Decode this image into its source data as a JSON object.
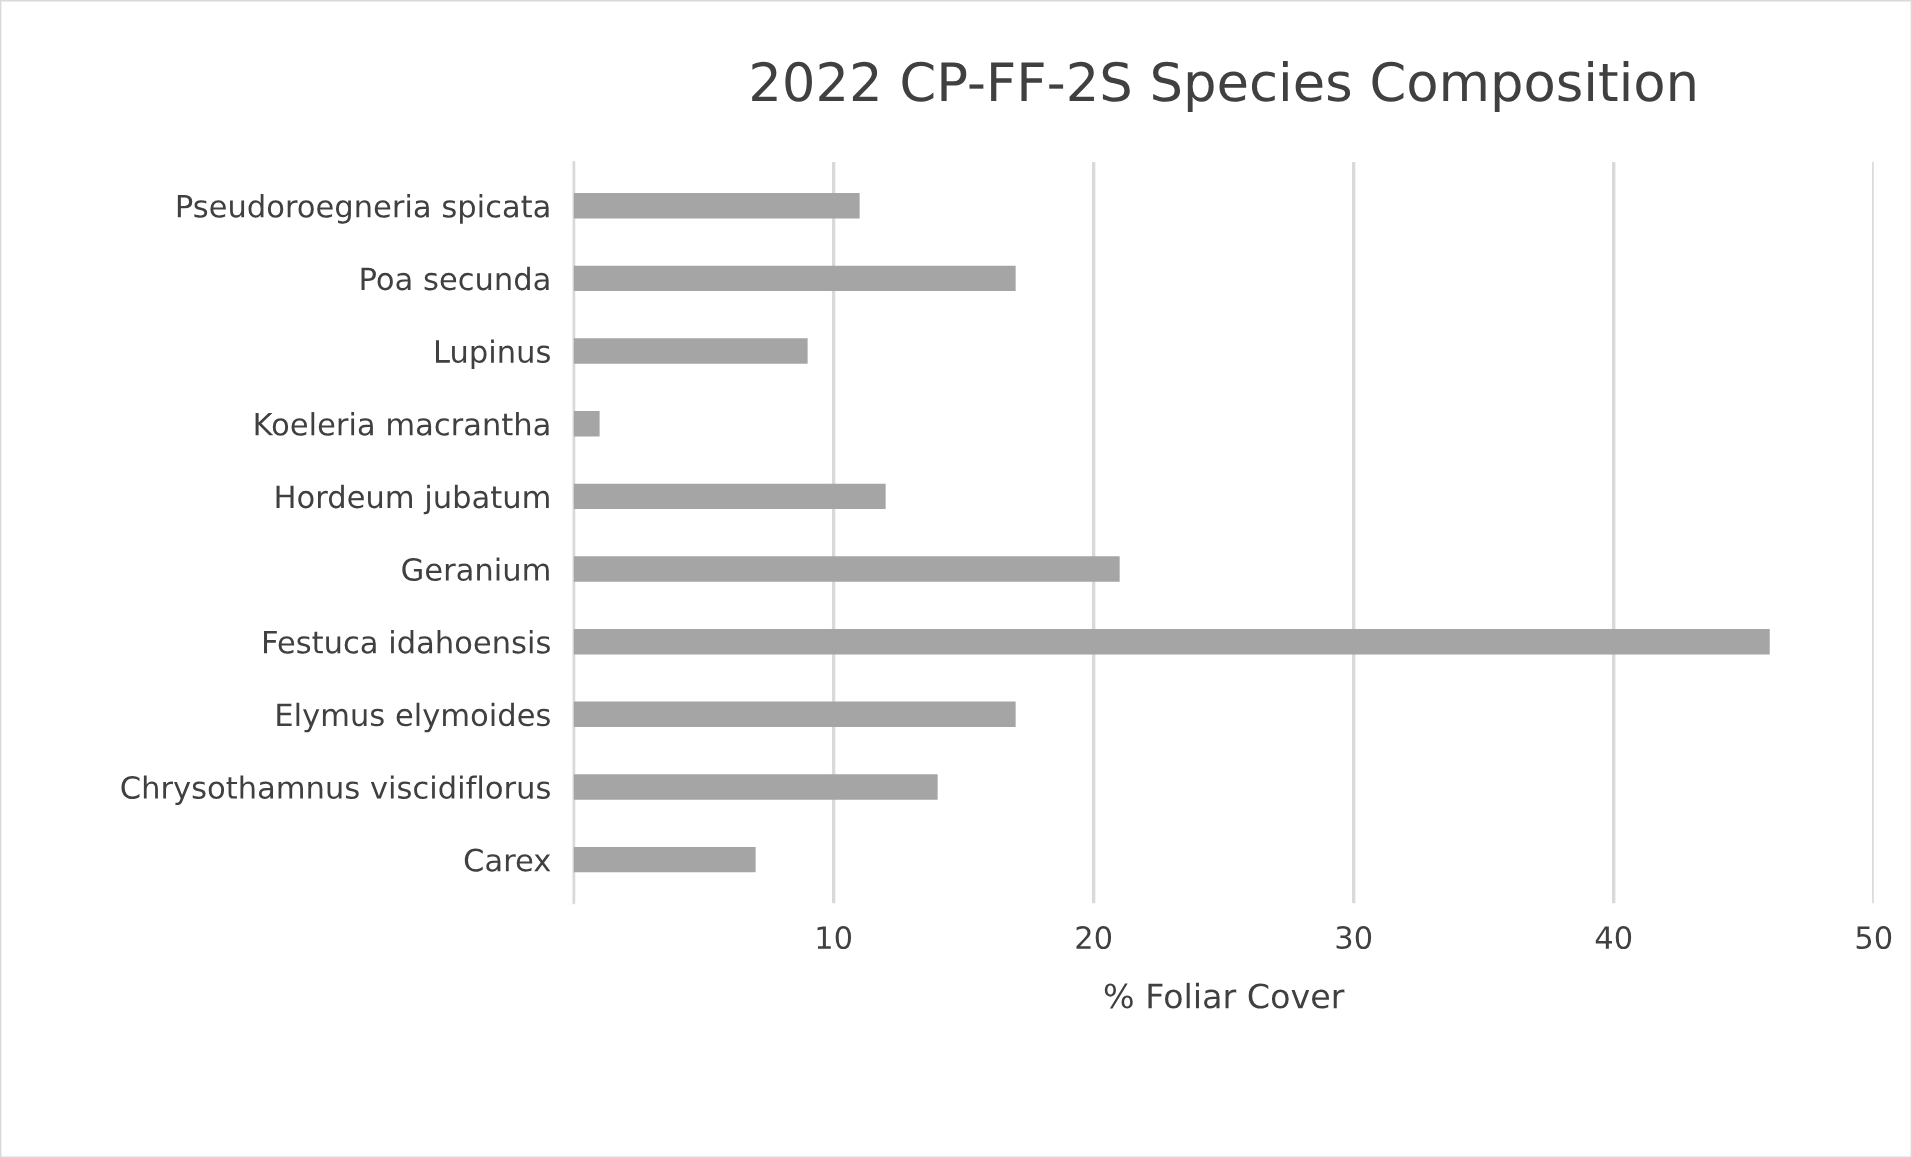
{
  "chart_data": {
    "type": "bar",
    "orientation": "horizontal",
    "title": "2022 CP-FF-2S Species Composition",
    "xlabel": "% Foliar Cover",
    "categories": [
      "Pseudoroegneria spicata",
      "Poa secunda",
      "Lupinus",
      "Koeleria macrantha",
      "Hordeum jubatum",
      "Geranium",
      "Festuca idahoensis",
      "Elymus elymoides",
      "Chrysothamnus viscidiflorus",
      "Carex"
    ],
    "values": [
      11,
      17,
      9,
      1,
      12,
      21,
      46,
      17,
      14,
      7
    ],
    "color": "#a5a5a5",
    "xlim": [
      0,
      50
    ],
    "xticks": [
      {
        "value": 0,
        "label": null
      },
      10,
      20,
      30,
      40,
      50
    ],
    "grid": "x",
    "legend": false
  }
}
